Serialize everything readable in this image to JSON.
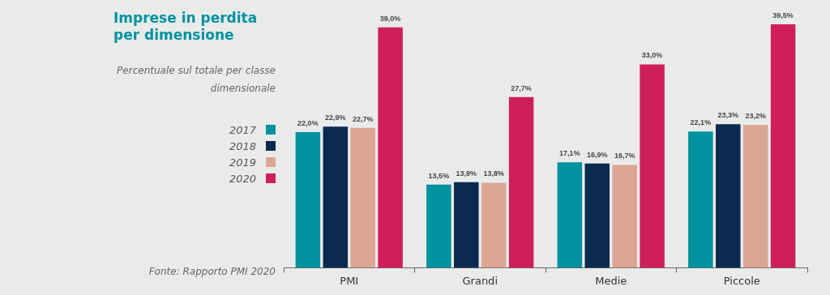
{
  "chart_data": {
    "type": "bar",
    "title": "Imprese in perdita per dimensione",
    "subtitle": "Percentuale sul totale per classe dimensionale",
    "annotations": [
      "Fonte: Rapporto PMI 2020"
    ],
    "categories": [
      "PMI",
      "Grandi",
      "Medie",
      "Piccole"
    ],
    "series": [
      {
        "name": "2017",
        "color": "#00929f",
        "values": [
          22.0,
          13.5,
          17.1,
          22.1
        ],
        "value_labels": [
          "22,0%",
          "13,5%",
          "17,1%",
          "22,1%"
        ]
      },
      {
        "name": "2018",
        "color": "#0b2a50",
        "values": [
          22.9,
          13.9,
          16.9,
          23.3
        ],
        "value_labels": [
          "22,9%",
          "13,9%",
          "16,9%",
          "23,3%"
        ]
      },
      {
        "name": "2019",
        "color": "#dba693",
        "values": [
          22.7,
          13.8,
          16.7,
          23.2
        ],
        "value_labels": [
          "22,7%",
          "13,8%",
          "16,7%",
          "23,2%"
        ]
      },
      {
        "name": "2020",
        "color": "#cf1f5b",
        "values": [
          39.0,
          27.7,
          33.0,
          39.5
        ],
        "value_labels": [
          "39,0%",
          "27,7%",
          "33,0%",
          "39,5%"
        ]
      }
    ],
    "legend": "left",
    "grid": false,
    "tick_labels": "x"
  }
}
